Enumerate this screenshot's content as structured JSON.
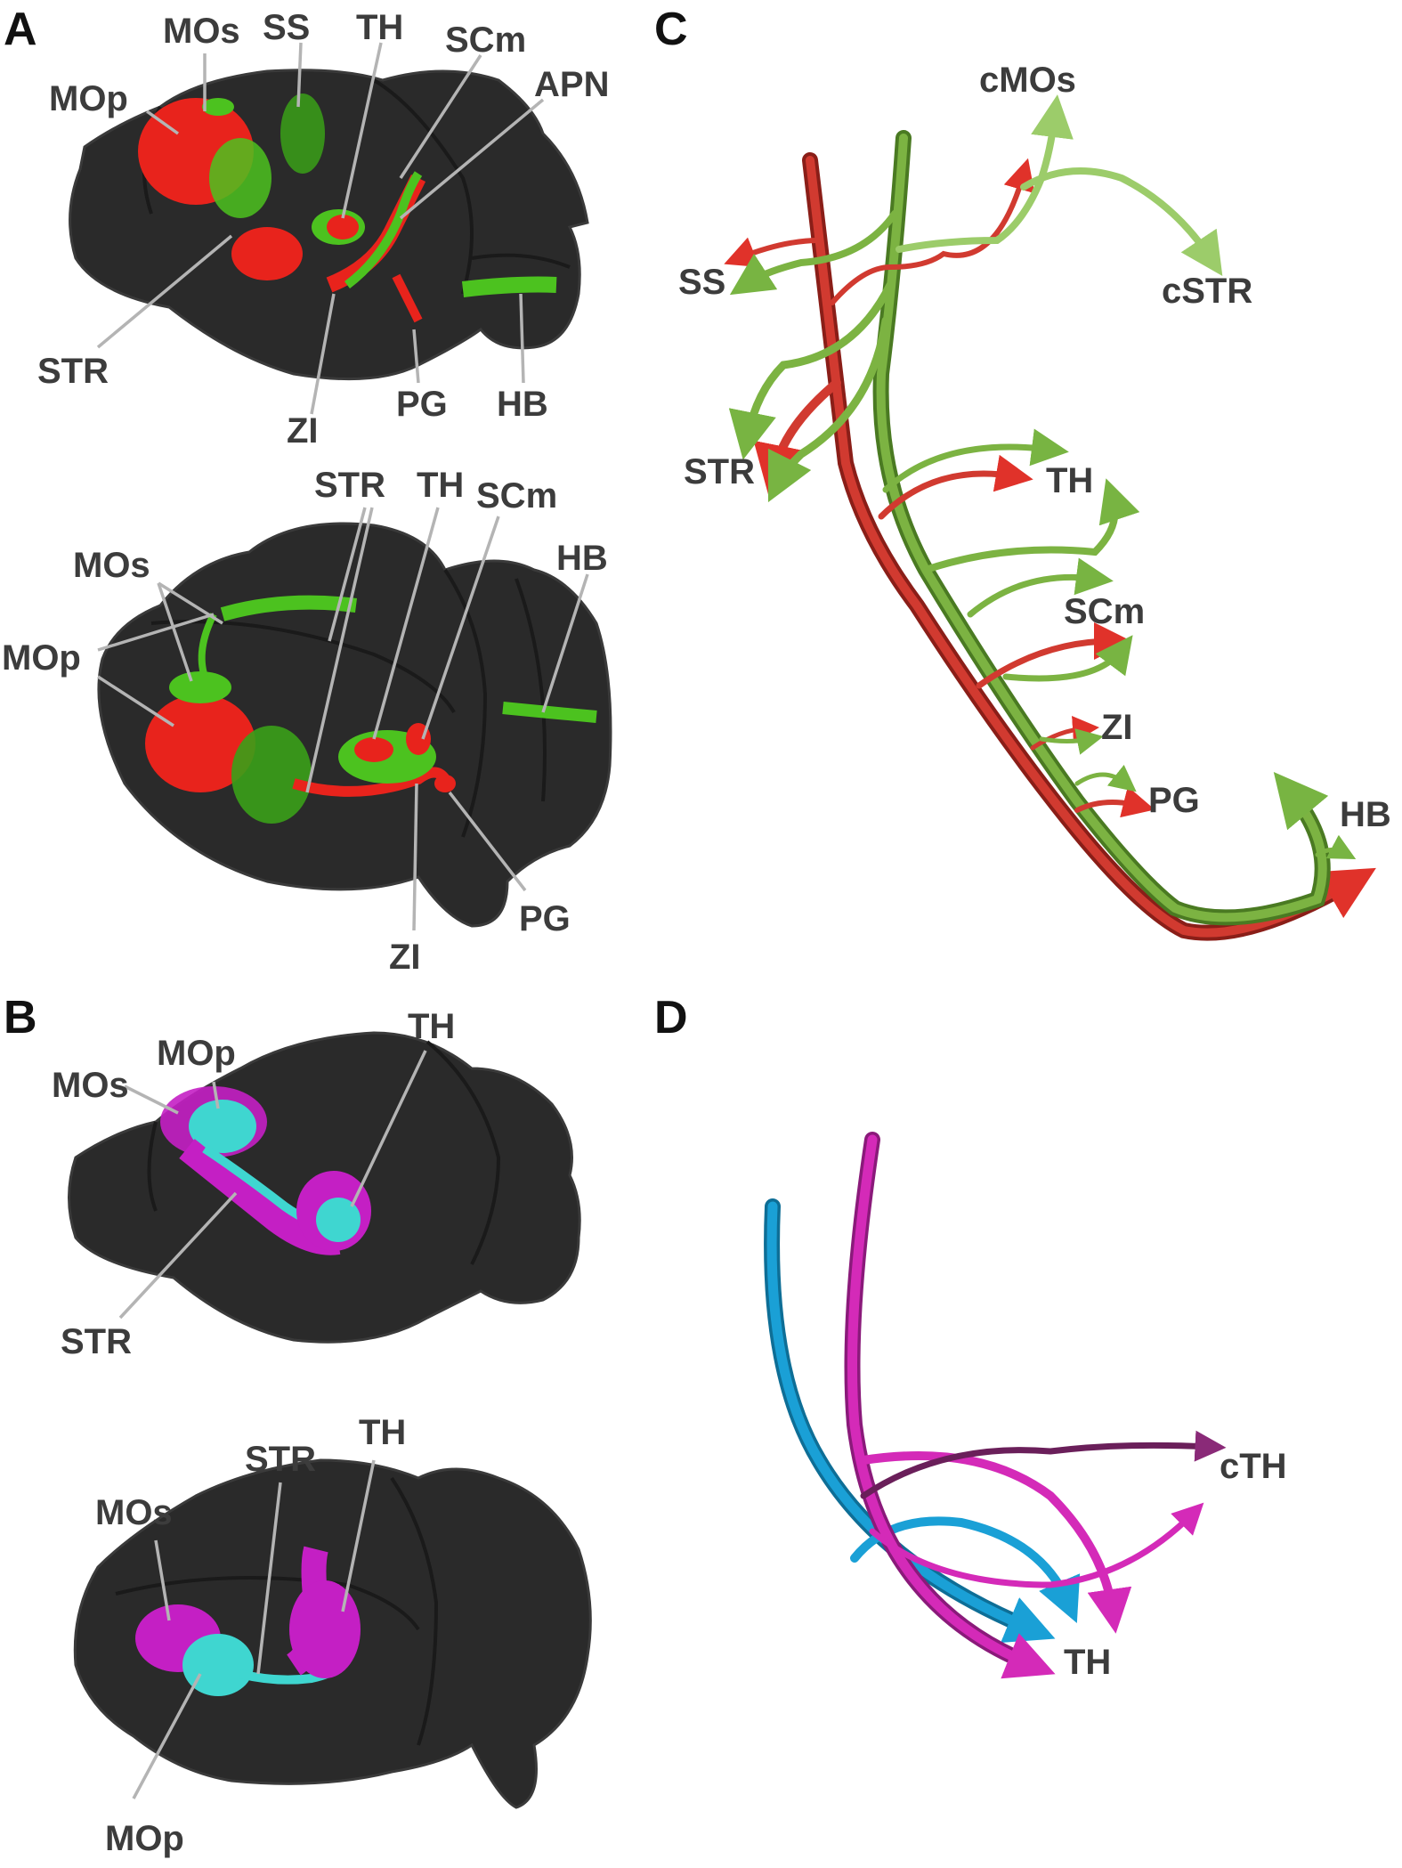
{
  "panels": {
    "A": {
      "letter": "A",
      "lateral": {
        "labels": {
          "mos": "MOs",
          "ss": "SS",
          "th": "TH",
          "scm": "SCm",
          "apn": "APN",
          "mop": "MOp",
          "str": "STR",
          "zi": "ZI",
          "pg": "PG",
          "hb": "HB"
        }
      },
      "dorsal": {
        "labels": {
          "str": "STR",
          "th": "TH",
          "scm": "SCm",
          "hb": "HB",
          "mos": "MOs",
          "mop": "MOp",
          "pg": "PG",
          "zi": "ZI"
        }
      }
    },
    "B": {
      "letter": "B",
      "lateral": {
        "labels": {
          "mos": "MOs",
          "mop": "MOp",
          "th": "TH",
          "str": "STR"
        }
      },
      "dorsal": {
        "labels": {
          "str": "STR",
          "th": "TH",
          "mos": "MOs",
          "mop": "MOp"
        }
      }
    },
    "C": {
      "letter": "C",
      "labels": {
        "cmos": "cMOs",
        "ss": "SS",
        "cstr": "cSTR",
        "str": "STR",
        "th": "TH",
        "scm": "SCm",
        "zi": "ZI",
        "pg": "PG",
        "hb": "HB"
      }
    },
    "D": {
      "letter": "D",
      "labels": {
        "cth": "cTH",
        "th": "TH"
      }
    }
  },
  "colors": {
    "red_projection": "#e8231c",
    "green_projection": "#4cc21f",
    "cyan_projection": "#3fd6d0",
    "magenta_projection": "#c41fc4",
    "tube_red": "#c8302a",
    "tube_green": "#6a9e32",
    "tube_light_green": "#9ccc6a",
    "tube_blue": "#1aa0d6",
    "tube_magenta": "#d42ab8",
    "tube_dark_magenta": "#6a1f5a"
  }
}
